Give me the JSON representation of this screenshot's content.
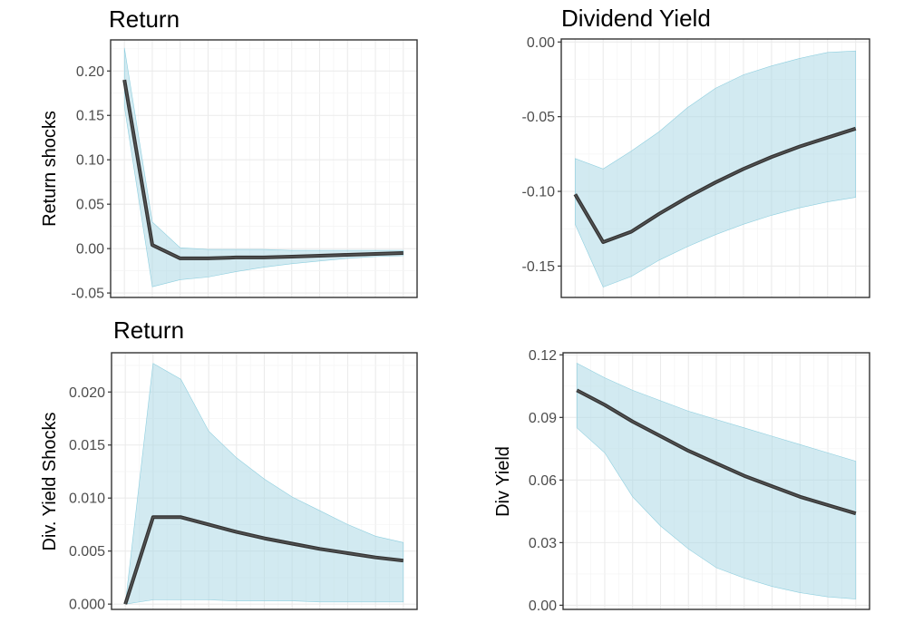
{
  "chart_data": [
    {
      "type": "line",
      "title": "Return",
      "ylabel": "Return shocks",
      "xlabel": "",
      "grid": true,
      "legend": "none",
      "x": [
        1,
        2,
        3,
        4,
        5,
        6,
        7,
        8,
        9,
        10,
        11
      ],
      "ylim": [
        -0.055,
        0.235
      ],
      "yticks": [
        -0.05,
        0.0,
        0.05,
        0.1,
        0.15,
        0.2
      ],
      "ytick_labels": [
        "-0.05",
        "0.00",
        "0.05",
        "0.10",
        "0.15",
        "0.20"
      ],
      "series": [
        {
          "values": [
            0.19,
            0.004,
            -0.011,
            -0.011,
            -0.01,
            -0.01,
            -0.009,
            -0.008,
            -0.007,
            -0.006,
            -0.005
          ]
        }
      ],
      "band": {
        "lower": [
          0.16,
          -0.043,
          -0.035,
          -0.032,
          -0.026,
          -0.021,
          -0.017,
          -0.014,
          -0.011,
          -0.009,
          -0.008
        ],
        "upper": [
          0.226,
          0.03,
          0.001,
          -0.001,
          -0.001,
          -0.001,
          -0.002,
          -0.002,
          -0.002,
          -0.002,
          -0.002
        ]
      },
      "colors": {
        "line": "#333333",
        "band": "#add8e6"
      }
    },
    {
      "type": "line",
      "title": "Dividend Yield",
      "ylabel": "",
      "xlabel": "",
      "grid": true,
      "legend": "none",
      "x": [
        1,
        2,
        3,
        4,
        5,
        6,
        7,
        8,
        9,
        10,
        11
      ],
      "ylim": [
        -0.171,
        0.002
      ],
      "yticks": [
        -0.15,
        -0.1,
        -0.05,
        0.0
      ],
      "ytick_labels": [
        "-0.15",
        "-0.10",
        "-0.05",
        "0.00"
      ],
      "series": [
        {
          "values": [
            -0.102,
            -0.134,
            -0.127,
            -0.115,
            -0.104,
            -0.094,
            -0.085,
            -0.077,
            -0.07,
            -0.064,
            -0.058
          ]
        }
      ],
      "band": {
        "lower": [
          -0.122,
          -0.164,
          -0.157,
          -0.146,
          -0.137,
          -0.129,
          -0.122,
          -0.116,
          -0.111,
          -0.107,
          -0.104
        ],
        "upper": [
          -0.078,
          -0.085,
          -0.073,
          -0.06,
          -0.044,
          -0.031,
          -0.022,
          -0.016,
          -0.011,
          -0.007,
          -0.006
        ]
      },
      "colors": {
        "line": "#333333",
        "band": "#add8e6"
      }
    },
    {
      "type": "line",
      "title": "Return",
      "ylabel": "Div. Yield Shocks",
      "xlabel": "",
      "grid": true,
      "legend": "none",
      "x": [
        1,
        2,
        3,
        4,
        5,
        6,
        7,
        8,
        9,
        10,
        11
      ],
      "ylim": [
        -0.0005,
        0.0237
      ],
      "yticks": [
        0.0,
        0.005,
        0.01,
        0.015,
        0.02
      ],
      "ytick_labels": [
        "0.000",
        "0.005",
        "0.010",
        "0.015",
        "0.020"
      ],
      "series": [
        {
          "values": [
            0.0,
            0.0082,
            0.0082,
            0.0075,
            0.0068,
            0.0062,
            0.0057,
            0.0052,
            0.0048,
            0.0044,
            0.0041
          ]
        }
      ],
      "band": {
        "lower": [
          0.0,
          0.0004,
          0.0004,
          0.0004,
          0.0003,
          0.0003,
          0.0003,
          0.0002,
          0.0002,
          0.0002,
          0.0002
        ],
        "upper": [
          0.0,
          0.0227,
          0.0212,
          0.0163,
          0.0138,
          0.0118,
          0.0101,
          0.0088,
          0.0075,
          0.0064,
          0.0058
        ]
      },
      "colors": {
        "line": "#333333",
        "band": "#add8e6"
      }
    },
    {
      "type": "line",
      "title": "",
      "ylabel": "Div Yield",
      "xlabel": "",
      "grid": true,
      "legend": "none",
      "x": [
        1,
        2,
        3,
        4,
        5,
        6,
        7,
        8,
        9,
        10,
        11
      ],
      "ylim": [
        -0.002,
        0.121
      ],
      "yticks": [
        0.0,
        0.03,
        0.06,
        0.09,
        0.12
      ],
      "ytick_labels": [
        "0.00",
        "0.03",
        "0.06",
        "0.09",
        "0.12"
      ],
      "series": [
        {
          "values": [
            0.103,
            0.096,
            0.088,
            0.081,
            0.074,
            0.068,
            0.062,
            0.057,
            0.052,
            0.048,
            0.044
          ]
        }
      ],
      "band": {
        "lower": [
          0.085,
          0.073,
          0.052,
          0.038,
          0.027,
          0.018,
          0.013,
          0.009,
          0.006,
          0.004,
          0.003
        ],
        "upper": [
          0.116,
          0.109,
          0.103,
          0.098,
          0.093,
          0.089,
          0.085,
          0.081,
          0.077,
          0.073,
          0.069
        ]
      },
      "colors": {
        "line": "#333333",
        "band": "#add8e6"
      }
    }
  ]
}
